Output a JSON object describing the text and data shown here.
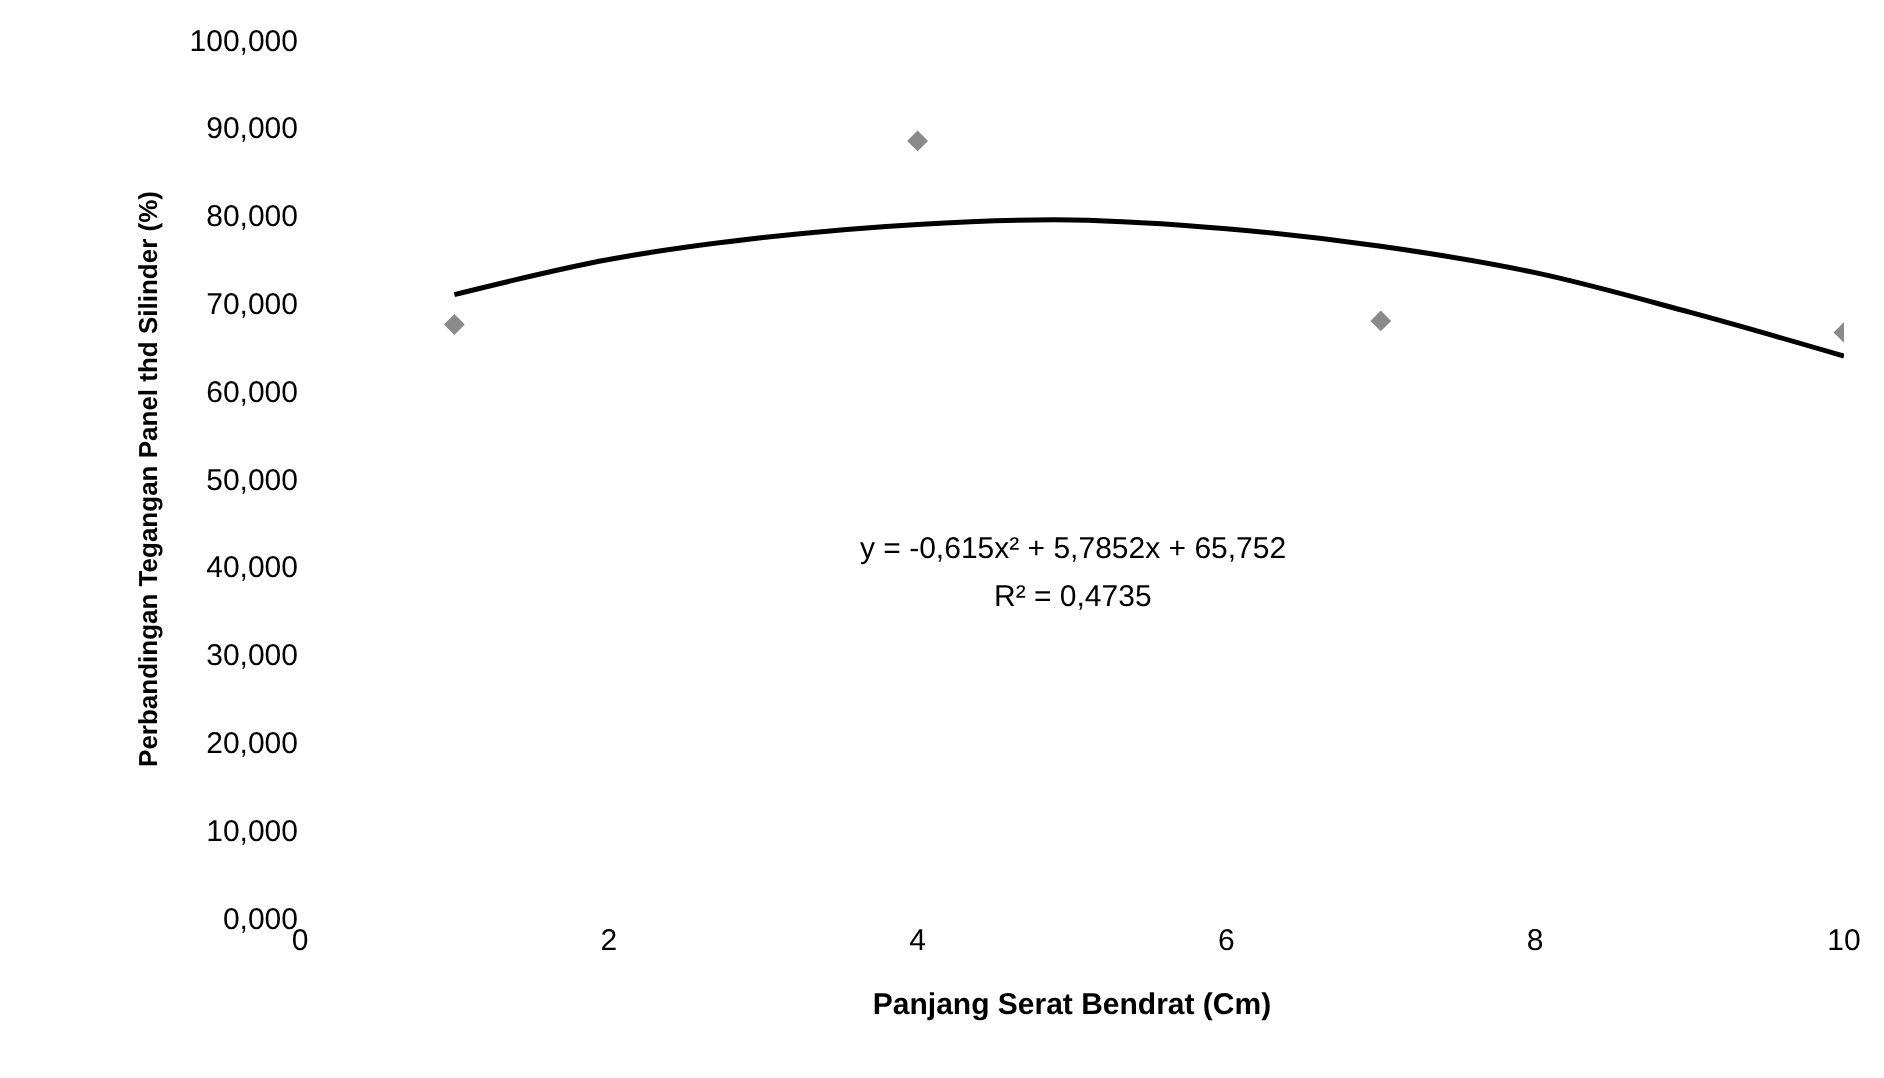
{
  "chart_data": {
    "type": "scatter",
    "xlabel": "Panjang Serat Bendrat (Cm)",
    "ylabel": "Perbandingan Tegangan Panel thd Silinder (%)",
    "series": [
      {
        "color": "#8a8a8a",
        "marker": "diamond",
        "x": [
          1,
          4,
          7,
          10
        ],
        "values": [
          67.6,
          88.5,
          68,
          66.7
        ]
      },
      {
        "type": "line",
        "color": "#000000",
        "marker": "none",
        "line_style": "solid",
        "x": [
          1,
          2,
          3,
          4,
          5,
          6,
          7,
          8,
          9,
          10
        ],
        "values": [
          71,
          75,
          77.5,
          79,
          79.5,
          78.5,
          76.5,
          73.5,
          69,
          64
        ]
      }
    ],
    "annotations": [
      "y = -0,615x² + 5,7852x + 65,752",
      "R² = 0,4735"
    ],
    "xlim": [
      0,
      10
    ],
    "xticks": [
      0,
      2,
      4,
      6,
      8,
      10
    ],
    "ylim": [
      0,
      100
    ],
    "yticks": [
      {
        "value": 0,
        "label": "0,000"
      },
      {
        "value": 10,
        "label": "10,000"
      },
      {
        "value": 20,
        "label": "20,000"
      },
      {
        "value": 30,
        "label": "30,000"
      },
      {
        "value": 40,
        "label": "40,000"
      },
      {
        "value": 50,
        "label": "50,000"
      },
      {
        "value": 60,
        "label": "60,000"
      },
      {
        "value": 70,
        "label": "70,000"
      },
      {
        "value": 80,
        "label": "80,000"
      },
      {
        "value": 90,
        "label": "90,000"
      },
      {
        "value": 100,
        "label": "100,000"
      }
    ],
    "grid": false
  }
}
